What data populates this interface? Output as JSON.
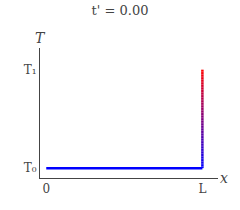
{
  "chart_data": {
    "type": "line",
    "title": "t' = 0.00",
    "x": [
      0.0,
      1.0,
      1.0
    ],
    "values": [
      0.0,
      0.0,
      1.0
    ],
    "colors": [
      "#0000ff",
      "#0000ff",
      "#ff0000"
    ],
    "xlim": [
      -0.04,
      1.1
    ],
    "ylim": [
      -0.1,
      1.22
    ],
    "xticks": [
      0,
      {
        "value": 1.0,
        "label": "L"
      }
    ],
    "yticks": [
      {
        "value": 0.0,
        "label": "T₀"
      },
      {
        "value": 1.0,
        "label": "T₁"
      }
    ],
    "annotations": [
      "T",
      "x"
    ],
    "grid": false
  }
}
